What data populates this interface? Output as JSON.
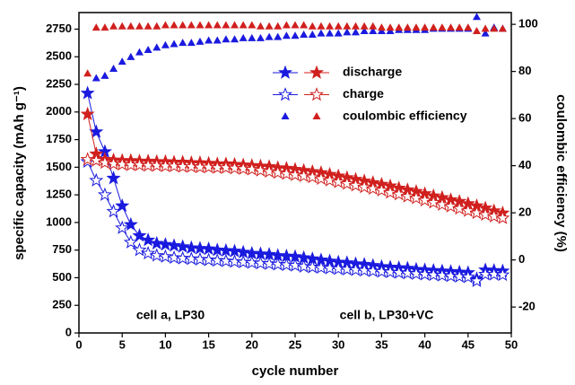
{
  "chart_data": {
    "type": "scatter",
    "xlabel": "cycle number",
    "ylabel": "specific capacity (mAh g⁻¹)",
    "y2label": "coulombic efficiency (%)",
    "xlim": [
      0,
      50
    ],
    "xticks": [
      0,
      5,
      10,
      15,
      20,
      25,
      30,
      35,
      40,
      45,
      50
    ],
    "ylim": [
      0,
      2900
    ],
    "yticks": [
      0,
      250,
      500,
      750,
      1000,
      1250,
      1500,
      1750,
      2000,
      2250,
      2500,
      2750
    ],
    "y2lim": [
      -31,
      105
    ],
    "y2ticks": [
      -20,
      0,
      20,
      40,
      60,
      80,
      100
    ],
    "annotations": [
      {
        "text": "cell a, LP30",
        "color": "#1a1adf"
      },
      {
        "text": "cell b, LP30+VC",
        "color": "#d0201e"
      }
    ],
    "x": [
      1,
      2,
      3,
      4,
      5,
      6,
      7,
      8,
      9,
      10,
      11,
      12,
      13,
      14,
      15,
      16,
      17,
      18,
      19,
      20,
      21,
      22,
      23,
      24,
      25,
      26,
      27,
      28,
      29,
      30,
      31,
      32,
      33,
      34,
      35,
      36,
      37,
      38,
      39,
      40,
      41,
      42,
      43,
      44,
      45,
      46,
      47,
      48,
      49
    ],
    "series": [
      {
        "name": "discharge",
        "color": "#1a1adf",
        "marker": "star-filled",
        "line": true,
        "values": [
          2170,
          1820,
          1640,
          1400,
          1150,
          980,
          880,
          840,
          810,
          800,
          790,
          780,
          770,
          765,
          760,
          750,
          745,
          740,
          730,
          720,
          715,
          710,
          700,
          695,
          690,
          680,
          670,
          660,
          650,
          640,
          635,
          625,
          620,
          610,
          600,
          595,
          590,
          585,
          575,
          570,
          565,
          560,
          555,
          550,
          545,
          490,
          570,
          565,
          560
        ]
      },
      {
        "name": "discharge",
        "color": "#d0201e",
        "marker": "star-filled",
        "line": true,
        "values": [
          1980,
          1620,
          1570,
          1565,
          1560,
          1560,
          1555,
          1555,
          1550,
          1550,
          1545,
          1545,
          1540,
          1540,
          1535,
          1530,
          1530,
          1525,
          1520,
          1515,
          1510,
          1505,
          1495,
          1490,
          1480,
          1470,
          1460,
          1450,
          1435,
          1420,
          1405,
          1390,
          1375,
          1360,
          1345,
          1330,
          1310,
          1295,
          1280,
          1260,
          1240,
          1225,
          1205,
          1190,
          1170,
          1150,
          1130,
          1105,
          1085
        ]
      },
      {
        "name": "charge",
        "color": "#1a1adf",
        "marker": "star-open",
        "line": true,
        "values": [
          1550,
          1380,
          1250,
          1100,
          950,
          820,
          750,
          720,
          700,
          690,
          680,
          675,
          670,
          665,
          660,
          655,
          650,
          645,
          640,
          635,
          630,
          625,
          620,
          615,
          610,
          600,
          595,
          590,
          585,
          580,
          575,
          570,
          565,
          560,
          555,
          550,
          545,
          540,
          535,
          530,
          525,
          520,
          515,
          510,
          505,
          470,
          530,
          530,
          525
        ]
      },
      {
        "name": "charge",
        "color": "#d0201e",
        "marker": "star-open",
        "line": true,
        "values": [
          1570,
          1560,
          1540,
          1530,
          1525,
          1520,
          1520,
          1515,
          1515,
          1510,
          1510,
          1505,
          1505,
          1500,
          1500,
          1495,
          1495,
          1490,
          1485,
          1480,
          1470,
          1460,
          1450,
          1440,
          1430,
          1420,
          1410,
          1395,
          1380,
          1365,
          1350,
          1335,
          1320,
          1305,
          1290,
          1270,
          1255,
          1235,
          1220,
          1200,
          1180,
          1160,
          1145,
          1125,
          1105,
          1085,
          1070,
          1055,
          1040
        ]
      },
      {
        "name": "coulombic efficiency",
        "color": "#1a1adf",
        "marker": "triangle",
        "line": false,
        "axis": "y2",
        "values": [
          null,
          77,
          78,
          81,
          84,
          86,
          88,
          89,
          90,
          91,
          91.5,
          92,
          92,
          92.5,
          93,
          93,
          93.5,
          93.5,
          94,
          94,
          94,
          94.5,
          94.5,
          95,
          95,
          95.5,
          95.5,
          96,
          96,
          96,
          96.5,
          96.5,
          97,
          97,
          97,
          97,
          97.5,
          97.5,
          97.5,
          97.5,
          98,
          98,
          98,
          98,
          98,
          103,
          96,
          98.5,
          98
        ]
      },
      {
        "name": "coulombic efficiency",
        "color": "#d0201e",
        "marker": "triangle",
        "line": false,
        "axis": "y2",
        "values": [
          79,
          98.5,
          98.5,
          99,
          99,
          99,
          99,
          99,
          99,
          99.5,
          99.5,
          99.5,
          99.5,
          99.5,
          99.5,
          99.5,
          99.5,
          99.5,
          99.5,
          99.5,
          99,
          99,
          99,
          99.5,
          99.5,
          99.5,
          99,
          99,
          99,
          99,
          99,
          99,
          99,
          99,
          98.5,
          98.5,
          98.5,
          98.5,
          98.5,
          98.5,
          98.5,
          98.5,
          98.5,
          98.5,
          98.5,
          97,
          98,
          98,
          98
        ]
      }
    ]
  }
}
